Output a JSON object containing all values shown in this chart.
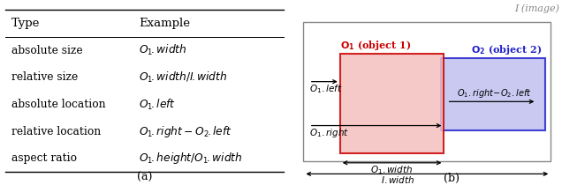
{
  "table_headers": [
    "Type",
    "Example"
  ],
  "table_rows": [
    [
      "absolute size",
      "$O_1.width$"
    ],
    [
      "relative size",
      "$O_1.width/I.width$"
    ],
    [
      "absolute location",
      "$O_1.left$"
    ],
    [
      "relative location",
      "$O_1.right - O_2.left$"
    ],
    [
      "aspect ratio",
      "$O_1.height/O_1.width$"
    ]
  ],
  "caption_a": "(a)",
  "caption_b": "(b)",
  "label_image": "I (image)",
  "color_o1": "#cc0000",
  "color_o2": "#2222cc",
  "color_o1_fill": "#f5c0c0",
  "color_o2_fill": "#c0c0f0",
  "color_border": "#888888",
  "color_text_gray": "#888888"
}
